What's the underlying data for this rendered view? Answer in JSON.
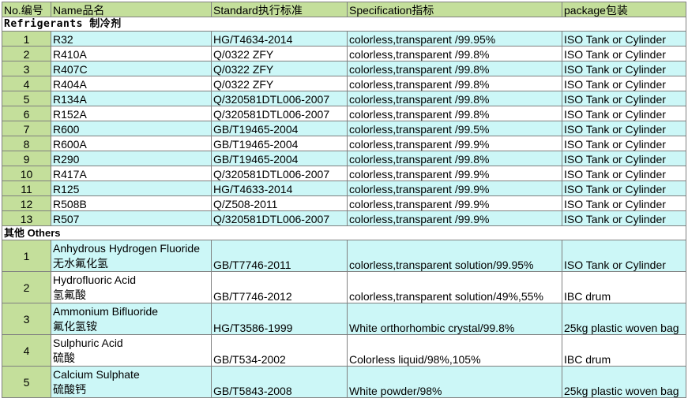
{
  "header": {
    "no": "No.编号",
    "name": "Name品名",
    "standard": "Standard执行标准",
    "specification": "Specification指标",
    "package": "package包装"
  },
  "sections": {
    "refrigerants": "Refrigerants 制冷剂",
    "others": "其他 Others"
  },
  "refrigerants": [
    {
      "no": "1",
      "name": "R32",
      "standard": "HG/T4634-2014",
      "spec": "colorless,transparent /99.95%",
      "package": "ISO Tank or Cylinder"
    },
    {
      "no": "2",
      "name": "R410A",
      "standard": "Q/0322 ZFY",
      "spec": "colorless,transparent /99.8%",
      "package": "ISO Tank or Cylinder"
    },
    {
      "no": "3",
      "name": "R407C",
      "standard": "Q/0322 ZFY",
      "spec": "colorless,transparent /99.8%",
      "package": "ISO Tank or Cylinder"
    },
    {
      "no": "4",
      "name": "R404A",
      "standard": "Q/0322 ZFY",
      "spec": "colorless,transparent /99.8%",
      "package": "ISO Tank or Cylinder"
    },
    {
      "no": "5",
      "name": "R134A",
      "standard": "Q/320581DTL006-2007",
      "spec": "colorless,transparent /99.8%",
      "package": "ISO Tank or Cylinder"
    },
    {
      "no": "6",
      "name": "R152A",
      "standard": "Q/320581DTL006-2007",
      "spec": "colorless,transparent /99.8%",
      "package": "ISO Tank or Cylinder"
    },
    {
      "no": "7",
      "name": "R600",
      "standard": "GB/T19465-2004",
      "spec": "colorless,transparent /99.5%",
      "package": "ISO Tank or Cylinder"
    },
    {
      "no": "8",
      "name": "R600A",
      "standard": "GB/T19465-2004",
      "spec": "colorless,transparent /99.9%",
      "package": "ISO Tank or Cylinder"
    },
    {
      "no": "9",
      "name": "R290",
      "standard": "GB/T19465-2004",
      "spec": "colorless,transparent /99.8%",
      "package": "ISO Tank or Cylinder"
    },
    {
      "no": "10",
      "name": "R417A",
      "standard": "Q/320581DTL006-2007",
      "spec": "colorless,transparent /99.9%",
      "package": "ISO Tank or Cylinder"
    },
    {
      "no": "11",
      "name": "R125",
      "standard": "HG/T4633-2014",
      "spec": "colorless,transparent /99.9%",
      "package": "ISO Tank or Cylinder"
    },
    {
      "no": "12",
      "name": "R508B",
      "standard": "Q/Z508-2011",
      "spec": "colorless,transparent /99.9%",
      "package": "ISO Tank or Cylinder"
    },
    {
      "no": "13",
      "name": "R507",
      "standard": "Q/320581DTL006-2007",
      "spec": "colorless,transparent /99.9%",
      "package": "ISO Tank or Cylinder"
    }
  ],
  "others": [
    {
      "no": "1",
      "name_en": "Anhydrous Hydrogen Fluoride",
      "name_zh": "无水氟化氢",
      "standard": "GB/T7746-2011",
      "spec": "colorless,transparent solution/99.95%",
      "package": "ISO Tank or Cylinder"
    },
    {
      "no": "2",
      "name_en": "Hydrofluoric Acid",
      "name_zh": "氢氟酸",
      "standard": "GB/T7746-2012",
      "spec": "colorless,transparent solution/49%,55%",
      "package": "IBC drum"
    },
    {
      "no": "3",
      "name_en": "Ammonium Bifluoride",
      "name_zh": "氟化氢铵",
      "standard": "HG/T3586-1999",
      "spec": "White orthorhombic crystal/99.8%",
      "package": "25kg plastic woven bag"
    },
    {
      "no": "4",
      "name_en": "Sulphuric Acid",
      "name_zh": "硫酸",
      "standard": "GB/T534-2002",
      "spec": "Colorless liquid/98%,105%",
      "package": "IBC drum"
    },
    {
      "no": "5",
      "name_en": "Calcium Sulphate",
      "name_zh": "硫酸钙",
      "standard": "GB/T5843-2008",
      "spec": "White powder/98%",
      "package": "25kg plastic woven bag"
    }
  ],
  "colors": {
    "header_green": "#c4df9b",
    "row_cyan": "#ccf7f7",
    "grid": "#808080"
  }
}
